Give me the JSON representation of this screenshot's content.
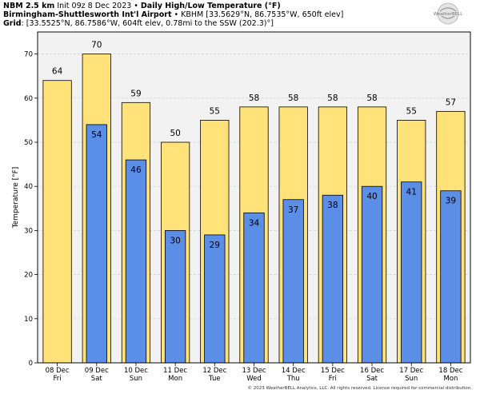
{
  "header": {
    "line1_bold": "NBM 2.5 km",
    "line1_init": " Init 09z 8 Dec 2023 • ",
    "line1_title": "Daily High/Low Temperature (°F)",
    "line2_station": "Birmingham-Shuttlesworth Int'l Airport",
    "line2_rest": " • KBHM [33.5629°N, 86.7535°W, 650ft elev]",
    "line3_bold": "Grid",
    "line3_rest": ": [33.5525°N, 86.7586°W, 604ft elev, 0.78mi to the SSW (202.3)°]"
  },
  "logo": {
    "name": "weatherbell-logo",
    "text": "WeatherBELL"
  },
  "copyright": "© 2023 WeatherBELL Analytics, LLC. All rights reserved. License required for commercial distribution.",
  "colors": {
    "high": "#ffe27a",
    "low": "#5b8ee6",
    "plot_bg": "#f2f2f2",
    "bar_stroke": "#000000"
  },
  "chart_data": {
    "type": "bar",
    "ylabel": "Temperature [°F]",
    "ylim": [
      0,
      75
    ],
    "yticks": [
      0,
      10,
      20,
      30,
      40,
      50,
      60,
      70
    ],
    "grid": true,
    "categories": [
      {
        "date": "08 Dec",
        "day": "Fri"
      },
      {
        "date": "09 Dec",
        "day": "Sat"
      },
      {
        "date": "10 Dec",
        "day": "Sun"
      },
      {
        "date": "11 Dec",
        "day": "Mon"
      },
      {
        "date": "12 Dec",
        "day": "Tue"
      },
      {
        "date": "13 Dec",
        "day": "Wed"
      },
      {
        "date": "14 Dec",
        "day": "Thu"
      },
      {
        "date": "15 Dec",
        "day": "Fri"
      },
      {
        "date": "16 Dec",
        "day": "Sat"
      },
      {
        "date": "17 Dec",
        "day": "Sun"
      },
      {
        "date": "18 Dec",
        "day": "Mon"
      }
    ],
    "series": [
      {
        "key": "high",
        "values": [
          64,
          70,
          59,
          50,
          55,
          58,
          58,
          58,
          58,
          55,
          57
        ]
      },
      {
        "key": "low",
        "values": [
          null,
          54,
          46,
          30,
          29,
          34,
          37,
          38,
          40,
          41,
          39
        ]
      }
    ]
  }
}
